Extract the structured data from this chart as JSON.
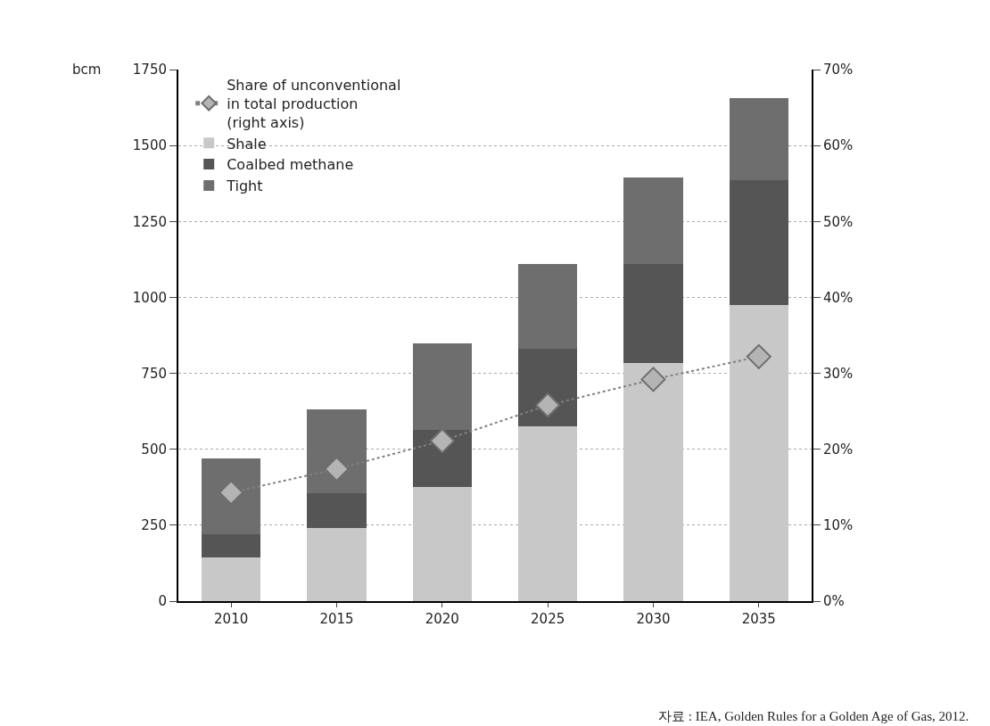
{
  "chart_data": {
    "type": "bar",
    "stacked": true,
    "ylabel": "bcm",
    "categories": [
      "2010",
      "2015",
      "2020",
      "2025",
      "2030",
      "2035"
    ],
    "series": [
      {
        "name": "Shale",
        "color": "#c8c8c8",
        "values": [
          145,
          240,
          375,
          575,
          785,
          975
        ]
      },
      {
        "name": "Coalbed methane",
        "color": "#555555",
        "values": [
          75,
          115,
          190,
          255,
          325,
          410
        ]
      },
      {
        "name": "Tight",
        "color": "#6e6e6e",
        "values": [
          250,
          275,
          285,
          280,
          285,
          270
        ]
      },
      {
        "name": "Share of unconventional\nin total production\n(right axis)",
        "type": "line",
        "axis": "y2",
        "color": "#b4b4b4",
        "marker": "diamond",
        "line_style": "dotted",
        "values": [
          14.3,
          17.4,
          21.1,
          25.8,
          29.2,
          32.2
        ]
      }
    ],
    "ylim": [
      0,
      1750
    ],
    "yticks": [
      0,
      250,
      500,
      750,
      1000,
      1250,
      1500,
      1750
    ],
    "y2lim": [
      0,
      70
    ],
    "y2ticks": [
      {
        "value": 0,
        "label": "0%"
      },
      {
        "value": 10,
        "label": "10%"
      },
      {
        "value": 20,
        "label": "20%"
      },
      {
        "value": 30,
        "label": "30%"
      },
      {
        "value": 40,
        "label": "40%"
      },
      {
        "value": 50,
        "label": "50%"
      },
      {
        "value": 60,
        "label": "60%"
      },
      {
        "value": 70,
        "label": "70%"
      }
    ],
    "grid": "y",
    "legend": "top left",
    "annotations": [
      "자료 : IEA, Golden Rules for a Golden Age of Gas, 2012."
    ]
  }
}
